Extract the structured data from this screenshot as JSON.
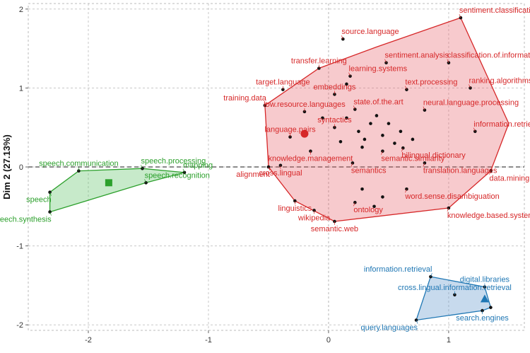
{
  "chart_data": {
    "type": "scatter",
    "title": "",
    "xlabel": "",
    "ylabel": "Dim 2 (27.13%)",
    "xlim": [
      -2.5,
      1.63
    ],
    "ylim": [
      -2.07,
      2.07
    ],
    "x_ticks": [
      -2,
      -1,
      0,
      1
    ],
    "y_ticks": [
      -2,
      -1,
      0,
      1,
      2
    ],
    "grid": true,
    "legend": "none",
    "colors": {
      "red": "#d62728",
      "green": "#2ca02c",
      "blue": "#1f77b4",
      "point": "#111111"
    },
    "clusters": [
      {
        "color": "#d62728",
        "fill": "rgba(230,90,100,0.32)",
        "centroid": [
          -0.2,
          0.42
        ],
        "centroid_shape": "circle",
        "hull": [
          [
            1.1,
            1.89
          ],
          [
            1.5,
            0.55
          ],
          [
            1.35,
            -0.05
          ],
          [
            1.0,
            -0.52
          ],
          [
            0.05,
            -0.69
          ],
          [
            -0.28,
            -0.43
          ],
          [
            -0.5,
            0.0
          ],
          [
            -0.53,
            0.78
          ],
          [
            -0.08,
            1.25
          ],
          [
            0.4,
            1.52
          ]
        ],
        "points": [
          {
            "x": 0.12,
            "y": 1.62,
            "label": "source.language"
          },
          {
            "x": 1.1,
            "y": 1.89,
            "label": "sentiment.classification"
          },
          {
            "x": 1.0,
            "y": 1.32,
            "label": "classification.of.information."
          },
          {
            "x": -0.08,
            "y": 1.25,
            "label": "transfer.learning"
          },
          {
            "x": 0.18,
            "y": 1.15,
            "label": "learning.systems"
          },
          {
            "x": 0.48,
            "y": 1.32,
            "label": "sentiment.analysis"
          },
          {
            "x": -0.38,
            "y": 0.98,
            "label": "target.language"
          },
          {
            "x": 0.05,
            "y": 0.92,
            "label": "embeddings"
          },
          {
            "x": 0.65,
            "y": 0.98,
            "label": "text.processing"
          },
          {
            "x": 1.18,
            "y": 1.0,
            "label": "ranking.algorithms"
          },
          {
            "x": -0.53,
            "y": 0.78,
            "label": "training.data"
          },
          {
            "x": -0.2,
            "y": 0.7,
            "label": "low.resource.languages"
          },
          {
            "x": 0.22,
            "y": 0.73,
            "label": "state.of.the.art"
          },
          {
            "x": 0.8,
            "y": 0.72,
            "label": "neural.language.processing"
          },
          {
            "x": 0.05,
            "y": 0.5,
            "label": "syntactics"
          },
          {
            "x": -0.32,
            "y": 0.38,
            "label": "language.pairs"
          },
          {
            "x": 1.22,
            "y": 0.45,
            "label": "information.retrieval.systems"
          },
          {
            "x": -0.15,
            "y": 0.2,
            "label": "knowledge.management"
          },
          {
            "x": 0.45,
            "y": 0.2,
            "label": "semantic.similarity"
          },
          {
            "x": 0.62,
            "y": 0.24,
            "label": "bilingual.dictionary"
          },
          {
            "x": -0.5,
            "y": 0.0,
            "label": "alignment"
          },
          {
            "x": -0.4,
            "y": 0.02,
            "label": "cross.lingual"
          },
          {
            "x": 0.2,
            "y": 0.05,
            "label": "semantics"
          },
          {
            "x": 0.8,
            "y": 0.05,
            "label": "translation.languages"
          },
          {
            "x": 1.35,
            "y": -0.05,
            "label": "data.mining"
          },
          {
            "x": 0.65,
            "y": -0.28,
            "label": "word.sense.disambiguation"
          },
          {
            "x": -0.28,
            "y": -0.43,
            "label": "linguistics"
          },
          {
            "x": 0.22,
            "y": -0.45,
            "label": "ontology"
          },
          {
            "x": 1.0,
            "y": -0.52,
            "label": "knowledge.based.systems"
          },
          {
            "x": -0.12,
            "y": -0.55,
            "label": "wikipedia"
          },
          {
            "x": 0.05,
            "y": -0.69,
            "label": "semantic.web"
          },
          {
            "x": 0.25,
            "y": 0.45
          },
          {
            "x": 0.3,
            "y": 0.35
          },
          {
            "x": 0.35,
            "y": 0.55
          },
          {
            "x": 0.45,
            "y": 0.4
          },
          {
            "x": 0.5,
            "y": 0.55
          },
          {
            "x": 0.4,
            "y": 0.65
          },
          {
            "x": 0.6,
            "y": 0.45
          },
          {
            "x": 0.7,
            "y": 0.35
          },
          {
            "x": 0.28,
            "y": 0.25
          },
          {
            "x": 0.1,
            "y": 0.32
          },
          {
            "x": 0.55,
            "y": 0.3
          },
          {
            "x": 0.38,
            "y": -0.5
          },
          {
            "x": 0.45,
            "y": -0.38
          },
          {
            "x": 0.28,
            "y": -0.28
          },
          {
            "x": -0.05,
            "y": 0.62
          },
          {
            "x": 0.15,
            "y": 0.62
          },
          {
            "x": 0.15,
            "y": 1.05
          }
        ]
      },
      {
        "color": "#2ca02c",
        "fill": "rgba(80,190,90,0.32)",
        "centroid": [
          -1.83,
          -0.2
        ],
        "centroid_shape": "square",
        "hull": [
          [
            -2.08,
            -0.05
          ],
          [
            -1.55,
            -0.02
          ],
          [
            -1.2,
            -0.07
          ],
          [
            -1.52,
            -0.2
          ],
          [
            -2.32,
            -0.57
          ],
          [
            -2.32,
            -0.32
          ]
        ],
        "points": [
          {
            "x": -1.55,
            "y": -0.02,
            "label": "speech.processing"
          },
          {
            "x": -2.08,
            "y": -0.05,
            "label": "speech.communication"
          },
          {
            "x": -1.2,
            "y": -0.07,
            "label": "mapping"
          },
          {
            "x": -2.32,
            "y": -0.32,
            "label": "speech"
          },
          {
            "x": -1.52,
            "y": -0.2,
            "label": "speech.recognition"
          },
          {
            "x": -2.32,
            "y": -0.57,
            "label": "speech.synthesis"
          }
        ]
      },
      {
        "color": "#1f77b4",
        "fill": "rgba(80,140,200,0.32)",
        "centroid": [
          1.3,
          -1.67
        ],
        "centroid_shape": "triangle",
        "hull": [
          [
            0.85,
            -1.39
          ],
          [
            1.3,
            -1.52
          ],
          [
            1.35,
            -1.78
          ],
          [
            1.28,
            -1.82
          ],
          [
            0.73,
            -1.94
          ]
        ],
        "points": [
          {
            "x": 0.85,
            "y": -1.39,
            "label": "information.retrieval"
          },
          {
            "x": 1.3,
            "y": -1.52,
            "label": "digital.libraries"
          },
          {
            "x": 1.05,
            "y": -1.62,
            "label": "cross.lingual.information.retrieval"
          },
          {
            "x": 1.28,
            "y": -1.82,
            "label": "search.engines"
          },
          {
            "x": 0.73,
            "y": -1.94,
            "label": "query.languages"
          },
          {
            "x": 1.35,
            "y": -1.78
          }
        ]
      }
    ]
  }
}
